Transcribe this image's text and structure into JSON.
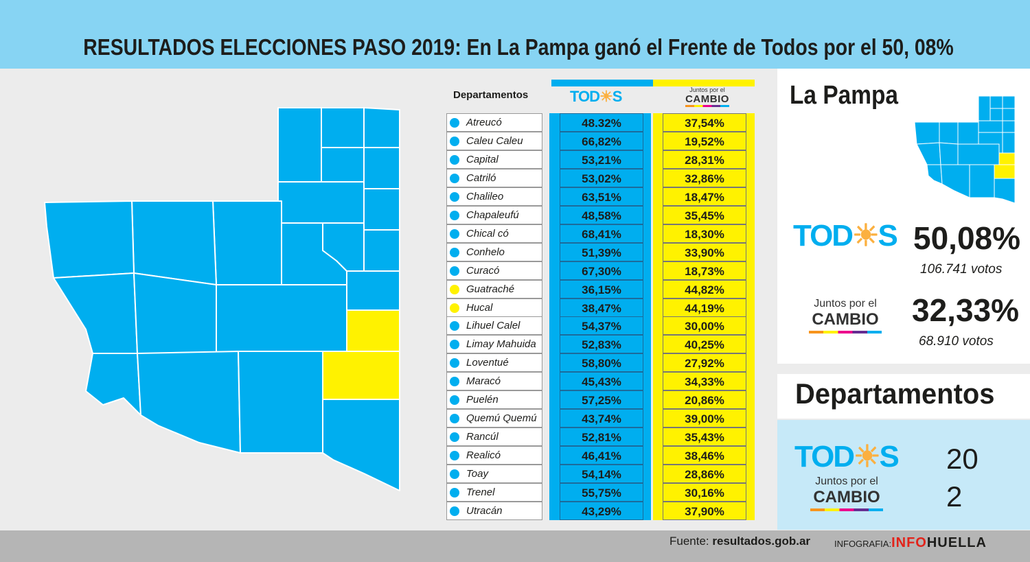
{
  "title": "RESULTADOS ELECCIONES PASO 2019: En La Pampa ganó el Frente de Todos por el 50, 08%",
  "colors": {
    "todos": "#00aeef",
    "jxc": "#fff200"
  },
  "table": {
    "header": "Departamentos",
    "todos_logo": "TOD☀S",
    "jxc_small": "Juntos por el",
    "jxc_big": "CAMBIO",
    "rows": [
      {
        "name": "Atreucó",
        "todos": "48.32%",
        "jxc": "37,54%",
        "winner": "todos"
      },
      {
        "name": "Caleu Caleu",
        "todos": "66,82%",
        "jxc": "19,52%",
        "winner": "todos"
      },
      {
        "name": "Capital",
        "todos": "53,21%",
        "jxc": "28,31%",
        "winner": "todos"
      },
      {
        "name": "Catriló",
        "todos": "53,02%",
        "jxc": "32,86%",
        "winner": "todos"
      },
      {
        "name": "Chalileo",
        "todos": "63,51%",
        "jxc": "18,47%",
        "winner": "todos"
      },
      {
        "name": "Chapaleufú",
        "todos": "48,58%",
        "jxc": "35,45%",
        "winner": "todos"
      },
      {
        "name": "Chical có",
        "todos": "68,41%",
        "jxc": "18,30%",
        "winner": "todos"
      },
      {
        "name": "Conhelo",
        "todos": "51,39%",
        "jxc": "33,90%",
        "winner": "todos"
      },
      {
        "name": "Curacó",
        "todos": "67,30%",
        "jxc": "18,73%",
        "winner": "todos"
      },
      {
        "name": "Guatraché",
        "todos": "36,15%",
        "jxc": "44,82%",
        "winner": "jxc"
      },
      {
        "name": "Hucal",
        "todos": "38,47%",
        "jxc": "44,19%",
        "winner": "jxc"
      },
      {
        "name": "Lihuel Calel",
        "todos": "54,37%",
        "jxc": "30,00%",
        "winner": "todos"
      },
      {
        "name": "Limay Mahuida",
        "todos": "52,83%",
        "jxc": "40,25%",
        "winner": "todos"
      },
      {
        "name": "Loventué",
        "todos": "58,80%",
        "jxc": "27,92%",
        "winner": "todos"
      },
      {
        "name": "Maracó",
        "todos": "45,43%",
        "jxc": "34,33%",
        "winner": "todos"
      },
      {
        "name": "Puelén",
        "todos": "57,25%",
        "jxc": "20,86%",
        "winner": "todos"
      },
      {
        "name": "Quemú Quemú",
        "todos": "43,74%",
        "jxc": "39,00%",
        "winner": "todos"
      },
      {
        "name": "Rancúl",
        "todos": "52,81%",
        "jxc": "35,43%",
        "winner": "todos"
      },
      {
        "name": "Realicó",
        "todos": "46,41%",
        "jxc": "38,46%",
        "winner": "todos"
      },
      {
        "name": "Toay",
        "todos": "54,14%",
        "jxc": "28,86%",
        "winner": "todos"
      },
      {
        "name": "Trenel",
        "todos": "55,75%",
        "jxc": "30,16%",
        "winner": "todos"
      },
      {
        "name": "Utracán",
        "todos": "43,29%",
        "jxc": "37,90%",
        "winner": "todos"
      }
    ]
  },
  "summary": {
    "province": "La Pampa",
    "todos_logo": "TOD☀S",
    "todos_pct": "50,08%",
    "todos_votes": "106.741 votos",
    "jxc_small": "Juntos por el",
    "jxc_big": "CAMBIO",
    "jxc_pct": "32,33%",
    "jxc_votes": "68.910 votos"
  },
  "departments": {
    "title": "Departamentos",
    "todos_logo": "TOD☀S",
    "todos_count": "20",
    "jxc_small": "Juntos por el",
    "jxc_big": "CAMBIO",
    "jxc_count": "2"
  },
  "footer": {
    "source_label": "Fuente:",
    "source_value": "resultados.gob.ar",
    "credit_label": "INFOGRAFIA:",
    "credit_brand_a": "INF",
    "credit_brand_sep": "O",
    "credit_brand_b": "HUELLA"
  }
}
